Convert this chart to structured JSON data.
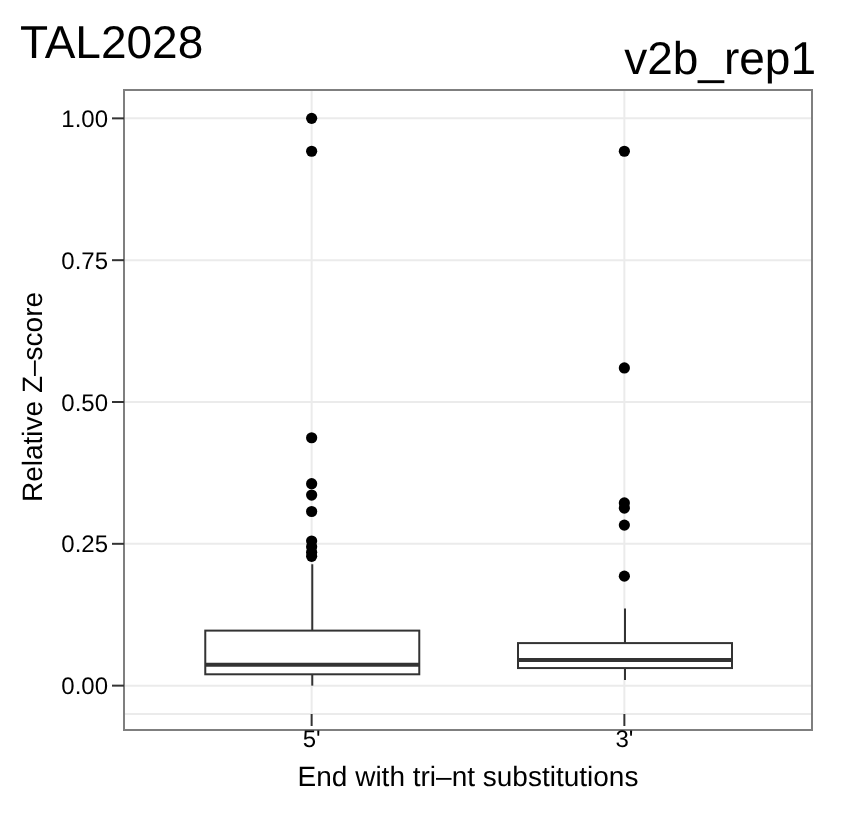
{
  "chart_data": {
    "type": "box",
    "title": "TAL2028",
    "subtitle": "v2b_rep1",
    "xlabel": "End with tri‒nt substitutions",
    "ylabel": "Relative Z‒score",
    "categories": [
      "5'",
      "3'"
    ],
    "boxes": [
      {
        "low": 0.0,
        "q1": 0.02,
        "median": 0.037,
        "q3": 0.097,
        "high": 0.214,
        "outliers": [
          1.0,
          0.942,
          0.437,
          0.356,
          0.336,
          0.307,
          0.255,
          0.245,
          0.235,
          0.228
        ]
      },
      {
        "low": 0.01,
        "q1": 0.031,
        "median": 0.045,
        "q3": 0.075,
        "high": 0.136,
        "outliers": [
          0.942,
          0.56,
          0.322,
          0.313,
          0.283,
          0.193
        ]
      }
    ],
    "color": "#333333",
    "ylim": [
      -0.05,
      1.05
    ],
    "yticks": [
      {
        "value": 0,
        "label": "0.00"
      },
      {
        "value": 0.25,
        "label": "0.25"
      },
      {
        "value": 0.5,
        "label": "0.50"
      },
      {
        "value": 0.75,
        "label": "0.75"
      },
      {
        "value": 1,
        "label": "1.00"
      }
    ],
    "grid": true
  }
}
